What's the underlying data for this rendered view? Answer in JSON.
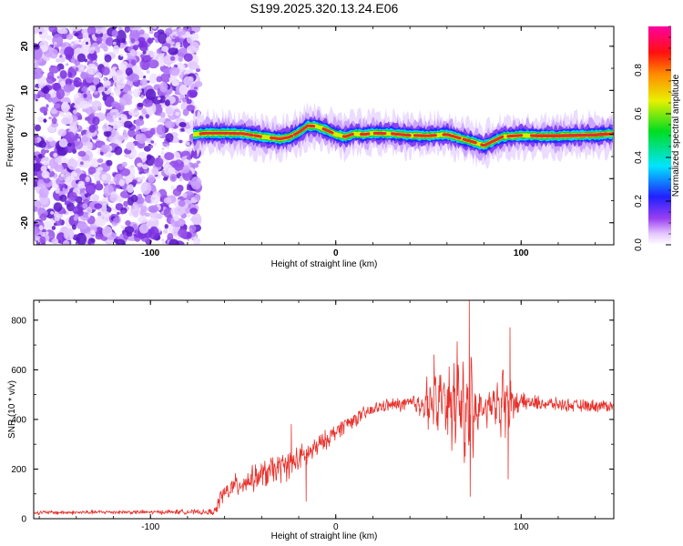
{
  "figure": {
    "title": "S199.2025.320.13.24.E06"
  },
  "colors": {
    "snr_line": "#e8322c",
    "speckle": "#7a2fe0",
    "band_core": "#e0302c"
  },
  "chart_data": [
    {
      "type": "heatmap",
      "name": "spectrogram",
      "title": "",
      "xlabel": "Height of straight line (km)",
      "ylabel": "Frequency (Hz)",
      "xlim": [
        -163,
        150
      ],
      "ylim": [
        -25,
        24.5
      ],
      "x_tick_values": [
        -100,
        0,
        100
      ],
      "x_tick_labels": [
        "-100",
        "0",
        "100"
      ],
      "y_tick_values": [
        -20,
        -10,
        0,
        10,
        20
      ],
      "y_tick_labels": [
        "-20",
        "-10",
        "0",
        "10",
        "20"
      ],
      "noise_region_x": [
        -163,
        -74
      ],
      "signal_start_x": -77,
      "ridge": {
        "x": [
          -77,
          -70,
          -60,
          -50,
          -40,
          -30,
          -25,
          -20,
          -15,
          -10,
          -5,
          0,
          5,
          10,
          15,
          20,
          30,
          40,
          50,
          60,
          65,
          70,
          75,
          80,
          85,
          90,
          100,
          110,
          120,
          130,
          140,
          150
        ],
        "frequency": [
          0,
          0.3,
          0.3,
          0.2,
          -0.5,
          -1.0,
          -0.6,
          0.5,
          2.0,
          1.8,
          1.0,
          0.0,
          -0.5,
          0.2,
          0.0,
          0.3,
          0.2,
          -0.2,
          -0.3,
          0.0,
          -0.6,
          -1.2,
          -1.8,
          -2.5,
          -1.5,
          -0.5,
          -0.2,
          -0.3,
          -0.3,
          -0.2,
          -0.1,
          0.2
        ]
      },
      "colorbar": {
        "label": "Normalized spectral amplitude",
        "range": [
          0.0,
          1.0
        ],
        "tick_values": [
          0.0,
          0.2,
          0.4,
          0.6,
          0.8
        ],
        "tick_labels": [
          "0.0",
          "0.2",
          "0.4",
          "0.6",
          "0.8"
        ]
      }
    },
    {
      "type": "line",
      "name": "snr",
      "title": "",
      "xlabel": "Height of straight line (km)",
      "ylabel": "SNR (10 * v/v)",
      "xlim": [
        -163,
        150
      ],
      "ylim": [
        0,
        880
      ],
      "x_tick_values": [
        -100,
        0,
        100
      ],
      "x_tick_labels": [
        "-100",
        "0",
        "100"
      ],
      "y_tick_values": [
        0,
        200,
        400,
        600,
        800
      ],
      "y_tick_labels": [
        "0",
        "200",
        "400",
        "600",
        "800"
      ],
      "series": [
        {
          "name": "SNR",
          "x": [
            -163,
            -140,
            -120,
            -100,
            -80,
            -70,
            -65,
            -62,
            -55,
            -45,
            -35,
            -25,
            -15,
            -5,
            5,
            15,
            25,
            35,
            45,
            55,
            62,
            67,
            72,
            75,
            80,
            85,
            90,
            95,
            100,
            110,
            120,
            130,
            140,
            150
          ],
          "y": [
            25,
            25,
            27,
            26,
            28,
            25,
            30,
            90,
            130,
            160,
            190,
            220,
            260,
            320,
            380,
            420,
            455,
            460,
            465,
            470,
            470,
            460,
            440,
            430,
            450,
            460,
            470,
            470,
            470,
            465,
            460,
            455,
            455,
            455
          ],
          "noise_amplitude": [
            10,
            10,
            10,
            10,
            12,
            12,
            20,
            45,
            55,
            60,
            75,
            70,
            60,
            45,
            40,
            35,
            30,
            35,
            55,
            120,
            200,
            230,
            220,
            110,
            60,
            60,
            140,
            70,
            40,
            35,
            30,
            30,
            30,
            30
          ],
          "annotated_peaks": [
            {
              "x": -24,
              "y": 380
            },
            {
              "x": -16,
              "y": 70
            },
            {
              "x": 53,
              "y": 660
            },
            {
              "x": 72,
              "y": 880
            },
            {
              "x": 72.5,
              "y": 90
            },
            {
              "x": 94,
              "y": 770
            },
            {
              "x": 93,
              "y": 160
            }
          ]
        }
      ]
    }
  ]
}
